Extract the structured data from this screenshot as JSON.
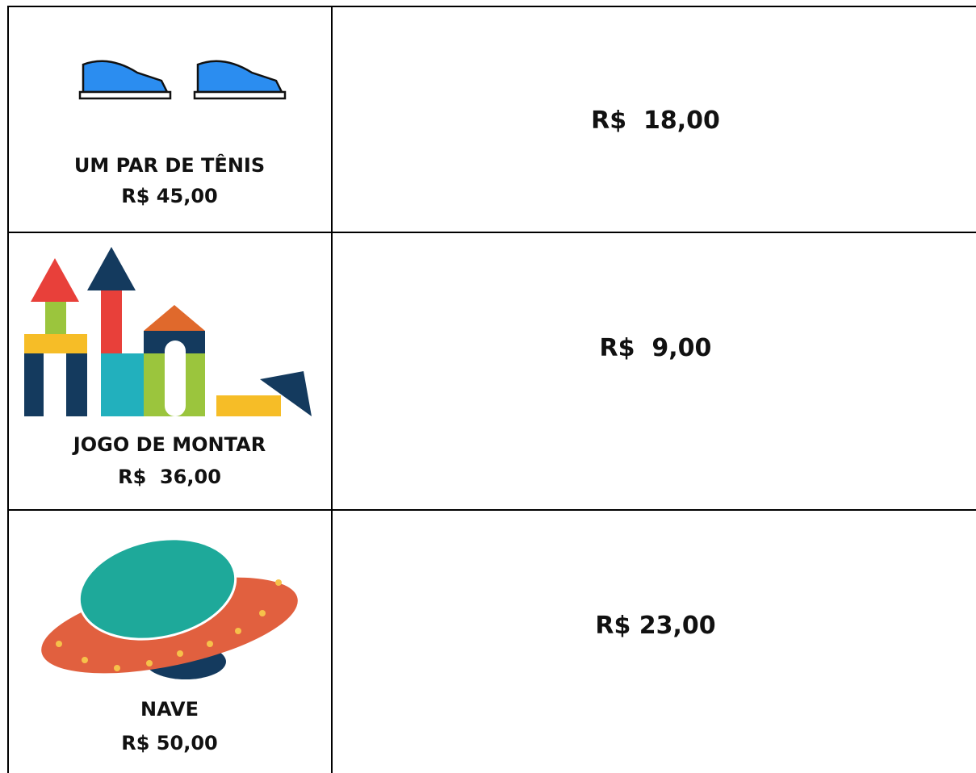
{
  "table": {
    "rows": [
      {
        "name": "UM PAR DE TÊNIS",
        "price": "R$ 45,00",
        "amount": "R$  18,00"
      },
      {
        "name": "JOGO DE MONTAR",
        "price": "R$  36,00",
        "amount": "R$  9,00"
      },
      {
        "name": "NAVE",
        "price": "R$ 50,00",
        "amount": "R$ 23,00"
      }
    ]
  }
}
